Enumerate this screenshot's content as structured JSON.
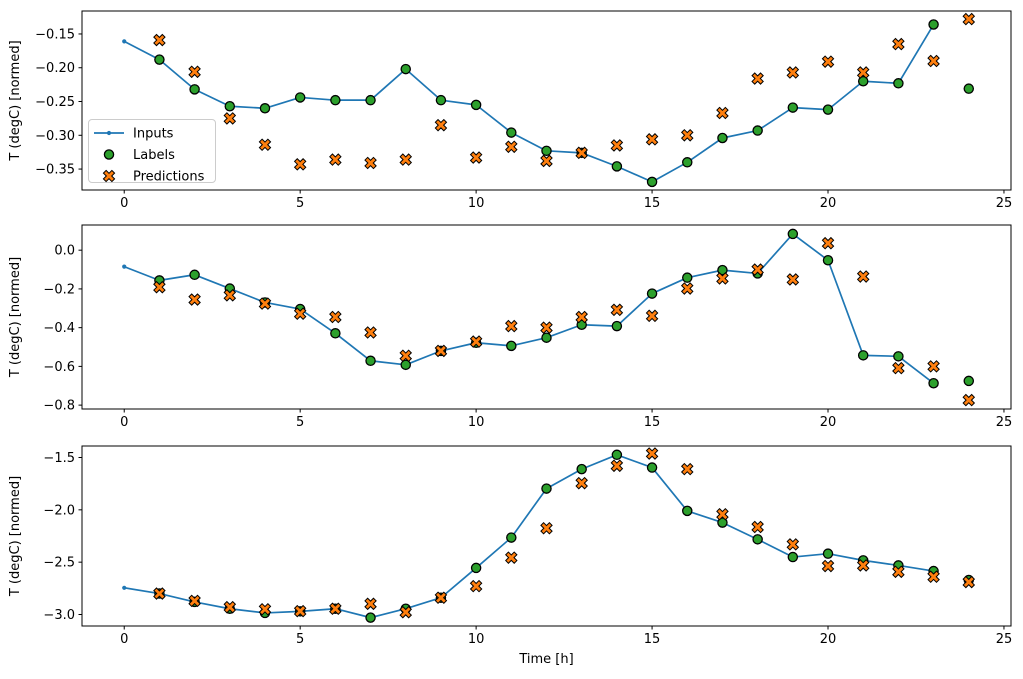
{
  "figure": {
    "background": "#ffffff",
    "axis_color": "#000000",
    "xlabel": "Time [h]",
    "ylabel": "T (degC) [normed]",
    "grid": false,
    "legend_border_color": "#cccccc",
    "legend_background": "#ffffff"
  },
  "chart_data": [
    {
      "type": "line",
      "title": "",
      "xlabel": "",
      "ylabel": "T (degC) [normed]",
      "xlim": [
        -1.2,
        25.2
      ],
      "ylim": [
        -0.381,
        -0.116
      ],
      "xticks": {
        "values": [
          0,
          5,
          10,
          15,
          20,
          25
        ],
        "labels": [
          "0",
          "5",
          "10",
          "15",
          "20",
          "25"
        ]
      },
      "yticks": {
        "values": [
          -0.15,
          -0.2,
          -0.25,
          -0.3,
          -0.35
        ],
        "labels": [
          "−0.15",
          "−0.20",
          "−0.25",
          "−0.30",
          "−0.35"
        ]
      },
      "legend": {
        "position": "center-left",
        "entries": [
          "Inputs",
          "Labels",
          "Predictions"
        ]
      },
      "series": [
        {
          "name": "Inputs",
          "type": "line",
          "marker": "dot",
          "color": "#1f77b4",
          "x": [
            0,
            1,
            2,
            3,
            4,
            5,
            6,
            7,
            8,
            9,
            10,
            11,
            12,
            13,
            14,
            15,
            16,
            17,
            18,
            19,
            20,
            21,
            22,
            23
          ],
          "y": [
            -0.161,
            -0.188,
            -0.232,
            -0.257,
            -0.26,
            -0.244,
            -0.248,
            -0.248,
            -0.202,
            -0.248,
            -0.255,
            -0.296,
            -0.323,
            -0.326,
            -0.346,
            -0.369,
            -0.34,
            -0.304,
            -0.293,
            -0.259,
            -0.262,
            -0.22,
            -0.223,
            -0.136
          ]
        },
        {
          "name": "Labels",
          "type": "scatter",
          "marker": "circle",
          "color": "#2ca02c",
          "edge_color": "#000000",
          "x": [
            1,
            2,
            3,
            4,
            5,
            6,
            7,
            8,
            9,
            10,
            11,
            12,
            13,
            14,
            15,
            16,
            17,
            18,
            19,
            20,
            21,
            22,
            23,
            24
          ],
          "y": [
            -0.188,
            -0.232,
            -0.257,
            -0.26,
            -0.244,
            -0.248,
            -0.248,
            -0.202,
            -0.248,
            -0.255,
            -0.296,
            -0.323,
            -0.326,
            -0.346,
            -0.369,
            -0.34,
            -0.304,
            -0.293,
            -0.259,
            -0.262,
            -0.22,
            -0.223,
            -0.136,
            -0.231
          ]
        },
        {
          "name": "Predictions",
          "type": "scatter",
          "marker": "X",
          "color": "#ff7f0e",
          "edge_color": "#000000",
          "x": [
            1,
            2,
            3,
            4,
            5,
            6,
            7,
            8,
            9,
            10,
            11,
            12,
            13,
            14,
            15,
            16,
            17,
            18,
            19,
            20,
            21,
            22,
            23,
            24
          ],
          "y": [
            -0.159,
            -0.206,
            -0.275,
            -0.314,
            -0.343,
            -0.336,
            -0.341,
            -0.336,
            -0.285,
            -0.333,
            -0.317,
            -0.338,
            -0.326,
            -0.315,
            -0.306,
            -0.3,
            -0.267,
            -0.216,
            -0.207,
            -0.191,
            -0.207,
            -0.165,
            -0.19,
            -0.128
          ]
        }
      ]
    },
    {
      "type": "line",
      "title": "",
      "xlabel": "",
      "ylabel": "T (degC) [normed]",
      "xlim": [
        -1.2,
        25.2
      ],
      "ylim": [
        -0.82,
        0.13
      ],
      "xticks": {
        "values": [
          0,
          5,
          10,
          15,
          20,
          25
        ],
        "labels": [
          "0",
          "5",
          "10",
          "15",
          "20",
          "25"
        ]
      },
      "yticks": {
        "values": [
          0.0,
          -0.2,
          -0.4,
          -0.6,
          -0.8
        ],
        "labels": [
          "0.0",
          "−0.2",
          "−0.4",
          "−0.6",
          "−0.8"
        ]
      },
      "legend": null,
      "series": [
        {
          "name": "Inputs",
          "type": "line",
          "marker": "dot",
          "color": "#1f77b4",
          "x": [
            0,
            1,
            2,
            3,
            4,
            5,
            6,
            7,
            8,
            9,
            10,
            11,
            12,
            13,
            14,
            15,
            16,
            17,
            18,
            19,
            20,
            21,
            22,
            23
          ],
          "y": [
            -0.085,
            -0.156,
            -0.127,
            -0.198,
            -0.27,
            -0.304,
            -0.429,
            -0.571,
            -0.592,
            -0.52,
            -0.478,
            -0.494,
            -0.452,
            -0.385,
            -0.392,
            -0.224,
            -0.142,
            -0.103,
            -0.12,
            0.084,
            -0.052,
            -0.543,
            -0.548,
            -0.687
          ]
        },
        {
          "name": "Labels",
          "type": "scatter",
          "marker": "circle",
          "color": "#2ca02c",
          "edge_color": "#000000",
          "x": [
            1,
            2,
            3,
            4,
            5,
            6,
            7,
            8,
            9,
            10,
            11,
            12,
            13,
            14,
            15,
            16,
            17,
            18,
            19,
            20,
            21,
            22,
            23,
            24
          ],
          "y": [
            -0.156,
            -0.127,
            -0.198,
            -0.27,
            -0.304,
            -0.429,
            -0.571,
            -0.592,
            -0.52,
            -0.478,
            -0.494,
            -0.452,
            -0.385,
            -0.392,
            -0.224,
            -0.142,
            -0.103,
            -0.12,
            0.084,
            -0.052,
            -0.543,
            -0.548,
            -0.687,
            -0.675
          ]
        },
        {
          "name": "Predictions",
          "type": "scatter",
          "marker": "X",
          "color": "#ff7f0e",
          "edge_color": "#000000",
          "x": [
            1,
            2,
            3,
            4,
            5,
            6,
            7,
            8,
            9,
            10,
            11,
            12,
            13,
            14,
            15,
            16,
            17,
            18,
            19,
            20,
            21,
            22,
            23,
            24
          ],
          "y": [
            -0.191,
            -0.255,
            -0.233,
            -0.276,
            -0.328,
            -0.345,
            -0.425,
            -0.545,
            -0.52,
            -0.472,
            -0.392,
            -0.4,
            -0.345,
            -0.308,
            -0.339,
            -0.198,
            -0.146,
            -0.1,
            -0.151,
            0.036,
            -0.136,
            -0.609,
            -0.6,
            -0.774
          ]
        }
      ]
    },
    {
      "type": "line",
      "title": "",
      "xlabel": "Time [h]",
      "ylabel": "T (degC) [normed]",
      "xlim": [
        -1.2,
        25.2
      ],
      "ylim": [
        -3.11,
        -1.39
      ],
      "xticks": {
        "values": [
          0,
          5,
          10,
          15,
          20,
          25
        ],
        "labels": [
          "0",
          "5",
          "10",
          "15",
          "20",
          "25"
        ]
      },
      "yticks": {
        "values": [
          -1.5,
          -2.0,
          -2.5,
          -3.0
        ],
        "labels": [
          "−1.5",
          "−2.0",
          "−2.5",
          "−3.0"
        ]
      },
      "legend": null,
      "series": [
        {
          "name": "Inputs",
          "type": "line",
          "marker": "dot",
          "color": "#1f77b4",
          "x": [
            0,
            1,
            2,
            3,
            4,
            5,
            6,
            7,
            8,
            9,
            10,
            11,
            12,
            13,
            14,
            15,
            16,
            17,
            18,
            19,
            20,
            21,
            22,
            23
          ],
          "y": [
            -2.745,
            -2.8,
            -2.88,
            -2.945,
            -2.985,
            -2.97,
            -2.945,
            -3.03,
            -2.945,
            -2.84,
            -2.555,
            -2.265,
            -1.797,
            -1.611,
            -1.474,
            -1.596,
            -2.01,
            -2.122,
            -2.282,
            -2.451,
            -2.419,
            -2.483,
            -2.531,
            -2.585
          ]
        },
        {
          "name": "Labels",
          "type": "scatter",
          "marker": "circle",
          "color": "#2ca02c",
          "edge_color": "#000000",
          "x": [
            1,
            2,
            3,
            4,
            5,
            6,
            7,
            8,
            9,
            10,
            11,
            12,
            13,
            14,
            15,
            16,
            17,
            18,
            19,
            20,
            21,
            22,
            23,
            24
          ],
          "y": [
            -2.8,
            -2.88,
            -2.945,
            -2.985,
            -2.97,
            -2.945,
            -3.03,
            -2.945,
            -2.84,
            -2.555,
            -2.265,
            -1.797,
            -1.611,
            -1.474,
            -1.596,
            -2.01,
            -2.122,
            -2.282,
            -2.451,
            -2.419,
            -2.483,
            -2.531,
            -2.585,
            -2.671
          ]
        },
        {
          "name": "Predictions",
          "type": "scatter",
          "marker": "X",
          "color": "#ff7f0e",
          "edge_color": "#000000",
          "x": [
            1,
            2,
            3,
            4,
            5,
            6,
            7,
            8,
            9,
            10,
            11,
            12,
            13,
            14,
            15,
            16,
            17,
            18,
            19,
            20,
            21,
            22,
            23,
            24
          ],
          "y": [
            -2.8,
            -2.87,
            -2.93,
            -2.95,
            -2.968,
            -2.945,
            -2.898,
            -2.978,
            -2.84,
            -2.729,
            -2.457,
            -2.176,
            -1.745,
            -1.579,
            -1.462,
            -1.611,
            -2.042,
            -2.164,
            -2.33,
            -2.537,
            -2.531,
            -2.592,
            -2.639,
            -2.69
          ]
        }
      ]
    }
  ]
}
